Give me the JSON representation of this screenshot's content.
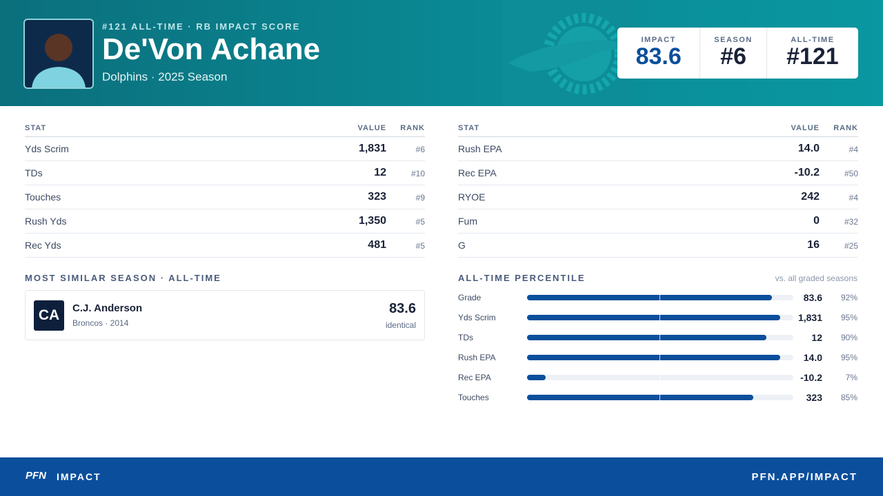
{
  "header": {
    "eyebrow": "#121 ALL-TIME · RB IMPACT SCORE",
    "name": "De'Von Achane",
    "subtitle": "Dolphins · 2025 Season",
    "badges": [
      {
        "label": "IMPACT",
        "value": "83.6"
      },
      {
        "label": "SEASON",
        "value": "#6"
      },
      {
        "label": "ALL-TIME",
        "value": "#121"
      }
    ]
  },
  "stats_left": {
    "columns": [
      "STAT",
      "VALUE",
      "RANK"
    ],
    "rows": [
      [
        "Yds Scrim",
        "1,831",
        "#6"
      ],
      [
        "TDs",
        "12",
        "#10"
      ],
      [
        "Touches",
        "323",
        "#9"
      ],
      [
        "Rush Yds",
        "1,350",
        "#5"
      ],
      [
        "Rec Yds",
        "481",
        "#5"
      ]
    ]
  },
  "stats_right": {
    "columns": [
      "STAT",
      "VALUE",
      "RANK"
    ],
    "rows": [
      [
        "Rush EPA",
        "14.0",
        "#4"
      ],
      [
        "Rec EPA",
        "-10.2",
        "#50"
      ],
      [
        "RYOE",
        "242",
        "#4"
      ],
      [
        "Fum",
        "0",
        "#32"
      ],
      [
        "G",
        "16",
        "#25"
      ]
    ]
  },
  "similar": {
    "title": "MOST SIMILAR SEASON · ALL-TIME",
    "initials": "CA",
    "name": "C.J. Anderson",
    "meta": "Broncos · 2014",
    "score": "83.6",
    "note": "identical"
  },
  "percentile": {
    "title": "ALL-TIME PERCENTILE",
    "note": "vs. all graded seasons",
    "rows": [
      {
        "label": "Grade",
        "value": "83.6",
        "percentile": {
          "value": 92,
          "label": "92%"
        }
      },
      {
        "label": "Yds Scrim",
        "value": "1,831",
        "percentile": {
          "value": 95,
          "label": "95%"
        }
      },
      {
        "label": "TDs",
        "value": "12",
        "percentile": {
          "value": 90,
          "label": "90%"
        }
      },
      {
        "label": "Rush EPA",
        "value": "14.0",
        "percentile": {
          "value": 95,
          "label": "95%"
        }
      },
      {
        "label": "Rec EPA",
        "value": "-10.2",
        "percentile": {
          "value": 7,
          "label": "7%"
        }
      },
      {
        "label": "Touches",
        "value": "323",
        "percentile": {
          "value": 85,
          "label": "85%"
        }
      }
    ]
  },
  "footer": {
    "logo": "PFN",
    "brand": "IMPACT",
    "url": "PFN.APP/IMPACT"
  }
}
